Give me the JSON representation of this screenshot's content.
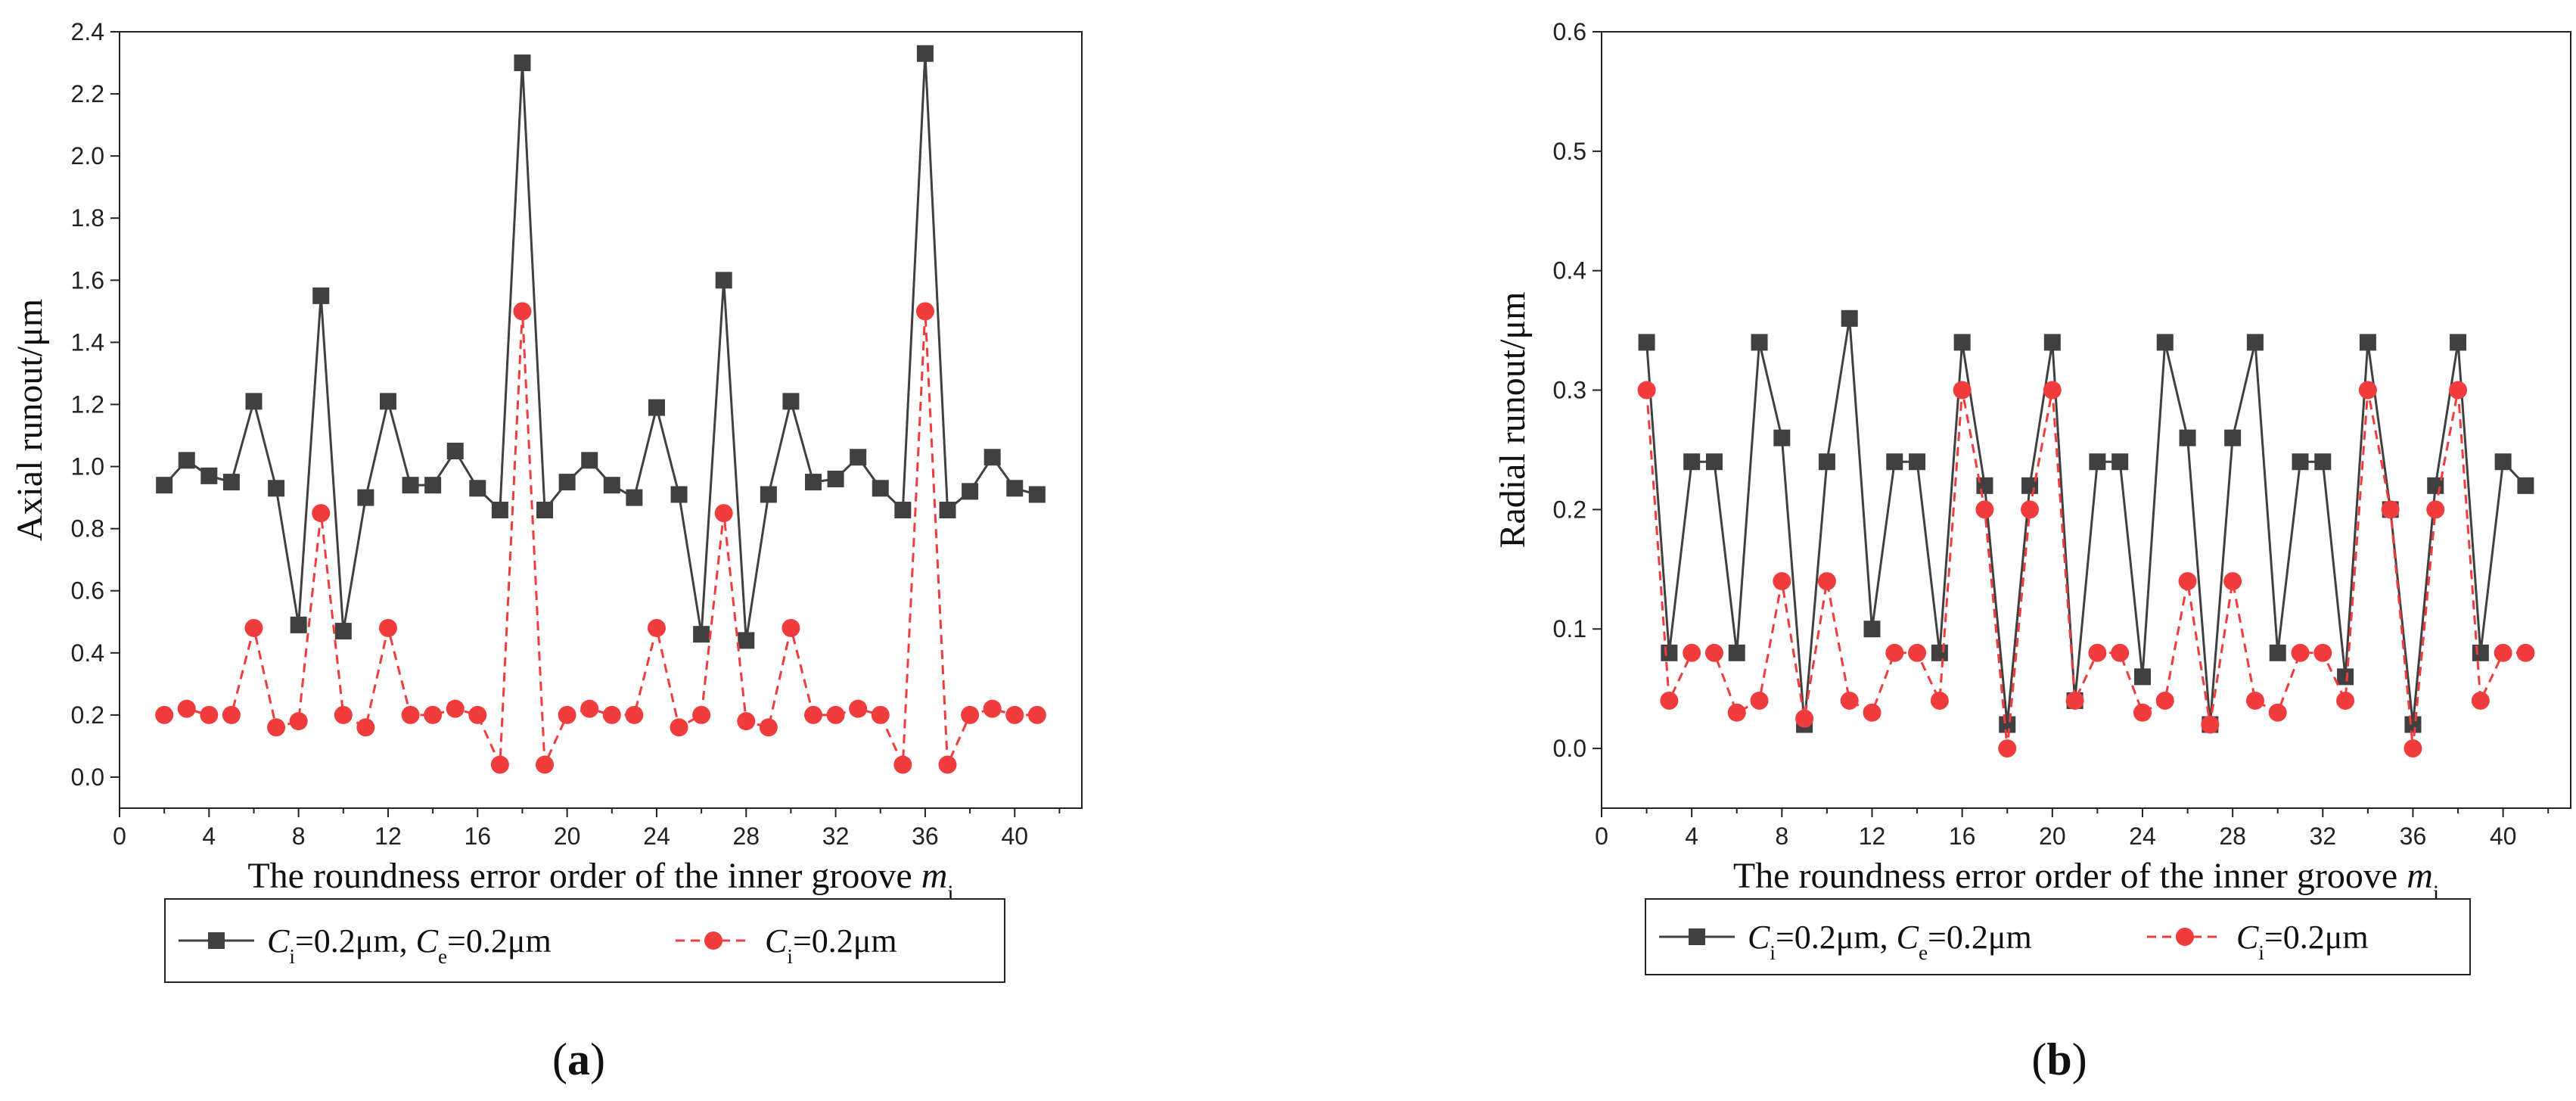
{
  "chart_data": [
    {
      "type": "line",
      "panel_label": "a",
      "title": "",
      "xlabel": "The roundness error order of the inner groove ",
      "xlabel_symbol": "m",
      "xlabel_subscript": "i",
      "ylabel": "Axial runout/μm",
      "xlim": [
        0,
        43
      ],
      "ylim": [
        -0.1,
        2.4
      ],
      "xticks": [
        0,
        4,
        8,
        12,
        16,
        20,
        24,
        28,
        32,
        36,
        40
      ],
      "yticks": [
        0.0,
        0.2,
        0.4,
        0.6,
        0.8,
        1.0,
        1.2,
        1.4,
        1.6,
        1.8,
        2.0,
        2.2,
        2.4
      ],
      "ytick_labels": [
        "0.0",
        "0.2",
        "0.4",
        "0.6",
        "0.8",
        "1.0",
        "1.2",
        "1.4",
        "1.6",
        "1.8",
        "2.0",
        "2.2",
        "2.4"
      ],
      "legend": [
        {
          "parts": [
            "C",
            "i",
            "=0.2μm, ",
            "C",
            "e",
            "=0.2μm"
          ]
        },
        {
          "parts": [
            "C",
            "i",
            "=0.2μm"
          ]
        }
      ],
      "x": [
        2,
        3,
        4,
        5,
        6,
        7,
        8,
        9,
        10,
        11,
        12,
        13,
        14,
        15,
        16,
        17,
        18,
        19,
        20,
        21,
        22,
        23,
        24,
        25,
        26,
        27,
        28,
        29,
        30,
        31,
        32,
        33,
        34,
        35,
        36,
        37,
        38,
        39,
        40,
        41
      ],
      "series": [
        {
          "name": "Ci=0.2μm, Ce=0.2μm",
          "color": "#404040",
          "marker": "square",
          "dash": "solid",
          "values": [
            0.94,
            1.02,
            0.97,
            0.95,
            1.21,
            0.93,
            0.49,
            1.55,
            0.47,
            0.9,
            1.21,
            0.94,
            0.94,
            1.05,
            0.93,
            0.86,
            2.3,
            0.86,
            0.95,
            1.02,
            0.94,
            0.9,
            1.19,
            0.91,
            0.46,
            1.6,
            0.44,
            0.91,
            1.21,
            0.95,
            0.96,
            1.03,
            0.93,
            0.86,
            2.33,
            0.86,
            0.92,
            1.03,
            0.93,
            0.91
          ]
        },
        {
          "name": "Ci=0.2μm",
          "color": "#f03c3c",
          "marker": "circle",
          "dash": "dashed",
          "values": [
            0.2,
            0.22,
            0.2,
            0.2,
            0.48,
            0.16,
            0.18,
            0.85,
            0.2,
            0.16,
            0.48,
            0.2,
            0.2,
            0.22,
            0.2,
            0.04,
            1.5,
            0.04,
            0.2,
            0.22,
            0.2,
            0.2,
            0.48,
            0.16,
            0.2,
            0.85,
            0.18,
            0.16,
            0.48,
            0.2,
            0.2,
            0.22,
            0.2,
            0.04,
            1.5,
            0.04,
            0.2,
            0.22,
            0.2,
            0.2
          ]
        }
      ]
    },
    {
      "type": "line",
      "panel_label": "b",
      "title": "",
      "xlabel": "The roundness error order of the inner groove ",
      "xlabel_symbol": "m",
      "xlabel_subscript": "i",
      "ylabel": "Radial runout/μm",
      "xlim": [
        0,
        43
      ],
      "ylim": [
        -0.05,
        0.6
      ],
      "xticks": [
        0,
        4,
        8,
        12,
        16,
        20,
        24,
        28,
        32,
        36,
        40
      ],
      "yticks": [
        0.0,
        0.1,
        0.2,
        0.3,
        0.4,
        0.5,
        0.6
      ],
      "ytick_labels": [
        "0.0",
        "0.1",
        "0.2",
        "0.3",
        "0.4",
        "0.5",
        "0.6"
      ],
      "legend": [
        {
          "parts": [
            "C",
            "i",
            "=0.2μm, ",
            "C",
            "e",
            "=0.2μm"
          ]
        },
        {
          "parts": [
            "C",
            "i",
            "=0.2μm"
          ]
        }
      ],
      "x": [
        2,
        3,
        4,
        5,
        6,
        7,
        8,
        9,
        10,
        11,
        12,
        13,
        14,
        15,
        16,
        17,
        18,
        19,
        20,
        21,
        22,
        23,
        24,
        25,
        26,
        27,
        28,
        29,
        30,
        31,
        32,
        33,
        34,
        35,
        36,
        37,
        38,
        39,
        40,
        41
      ],
      "series": [
        {
          "name": "Ci=0.2μm, Ce=0.2μm",
          "color": "#404040",
          "marker": "square",
          "dash": "solid",
          "values": [
            0.34,
            0.08,
            0.24,
            0.24,
            0.08,
            0.34,
            0.26,
            0.02,
            0.24,
            0.36,
            0.1,
            0.24,
            0.24,
            0.08,
            0.34,
            0.22,
            0.02,
            0.22,
            0.34,
            0.04,
            0.24,
            0.24,
            0.06,
            0.34,
            0.26,
            0.02,
            0.26,
            0.34,
            0.08,
            0.24,
            0.24,
            0.06,
            0.34,
            0.2,
            0.02,
            0.22,
            0.34,
            0.08,
            0.24,
            0.22
          ]
        },
        {
          "name": "Ci=0.2μm",
          "color": "#f03c3c",
          "marker": "circle",
          "dash": "dashed",
          "values": [
            0.3,
            0.04,
            0.08,
            0.08,
            0.03,
            0.04,
            0.14,
            0.025,
            0.14,
            0.04,
            0.03,
            0.08,
            0.08,
            0.04,
            0.3,
            0.2,
            0.0,
            0.2,
            0.3,
            0.04,
            0.08,
            0.08,
            0.03,
            0.04,
            0.14,
            0.02,
            0.14,
            0.04,
            0.03,
            0.08,
            0.08,
            0.04,
            0.3,
            0.2,
            0.0,
            0.2,
            0.3,
            0.04,
            0.08,
            0.08
          ]
        }
      ]
    }
  ]
}
